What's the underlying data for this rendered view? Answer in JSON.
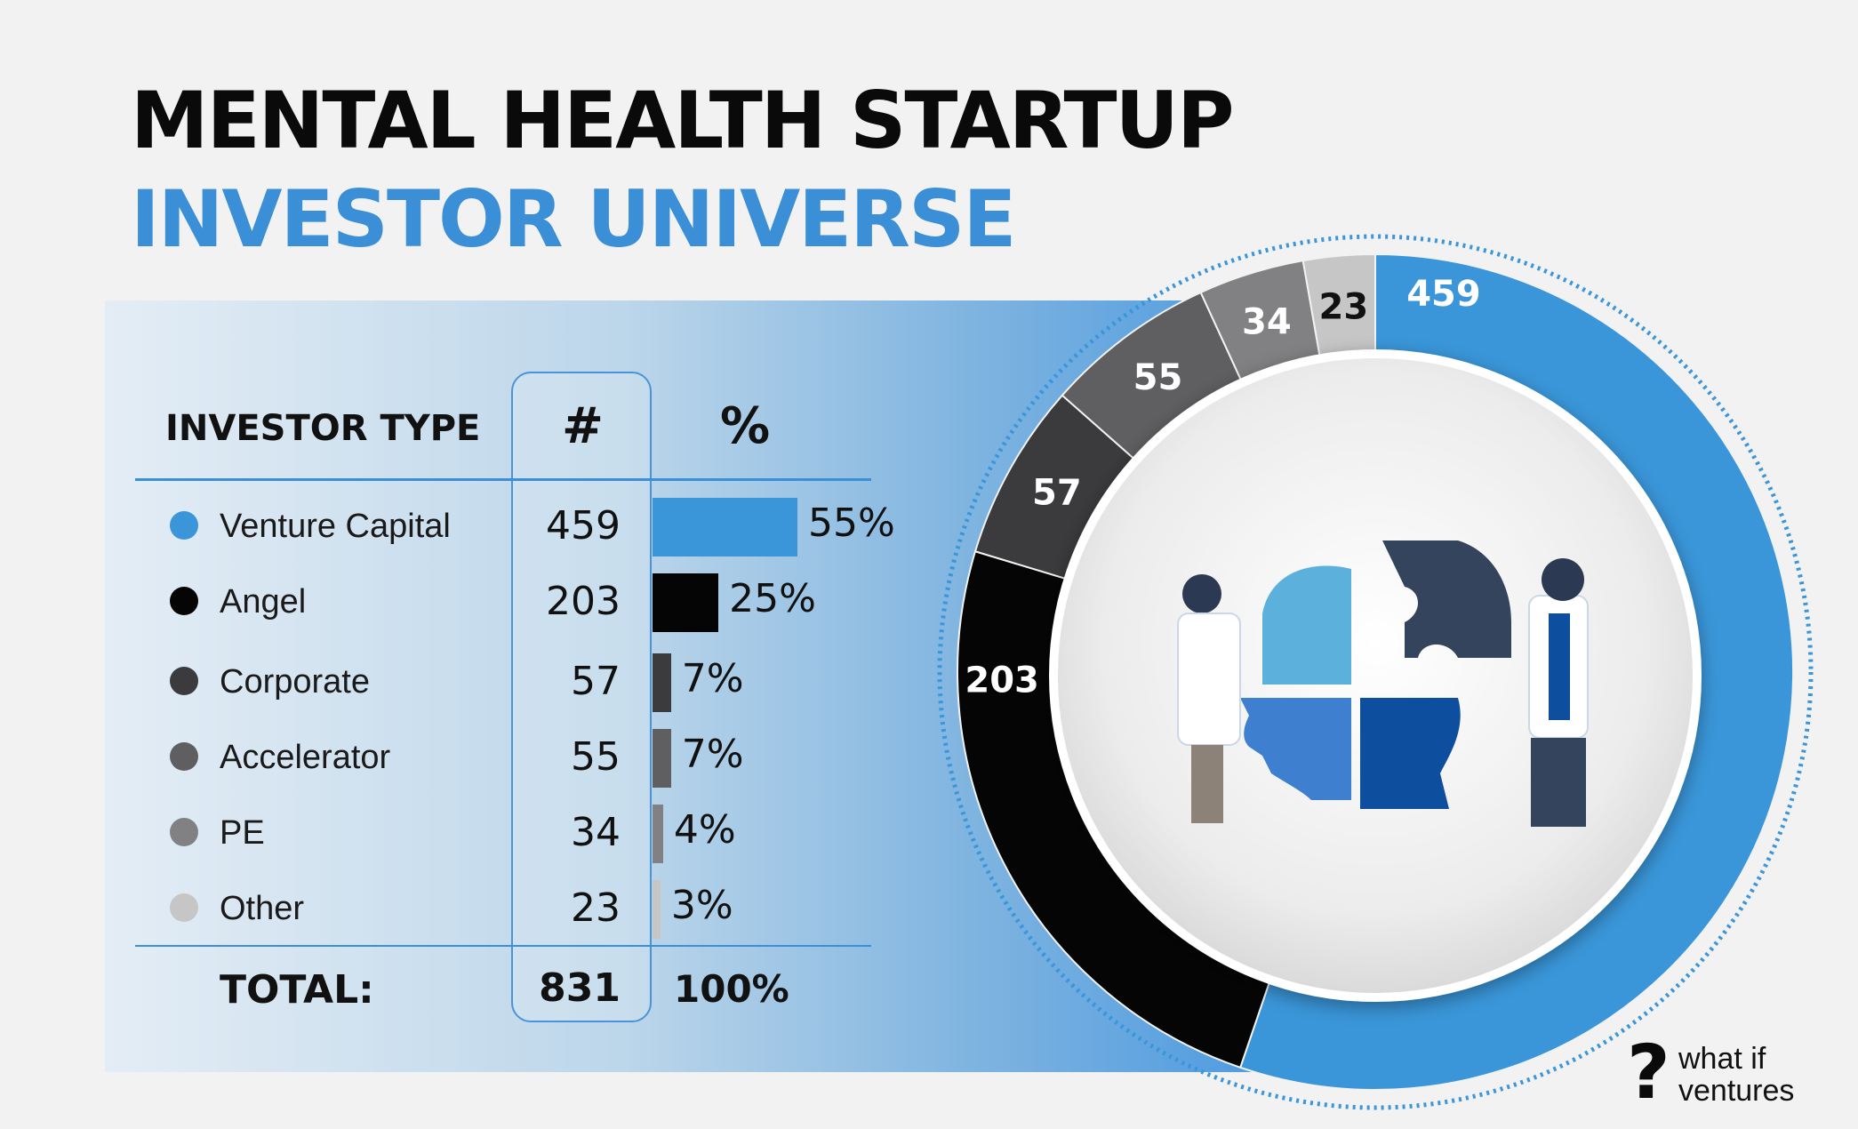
{
  "title": {
    "line1": "MENTAL HEALTH STARTUP",
    "line2": "INVESTOR UNIVERSE"
  },
  "table": {
    "header_type": "INVESTOR TYPE",
    "header_num": "#",
    "header_pct": "%",
    "total_label": "TOTAL:",
    "total_value": "831",
    "total_pct": "100%"
  },
  "chart_data": {
    "type": "pie",
    "title": "MENTAL HEALTH STARTUP INVESTOR UNIVERSE",
    "categories": [
      "Venture Capital",
      "Angel",
      "Corporate",
      "Accelerator",
      "PE",
      "Other"
    ],
    "values": [
      459,
      203,
      57,
      55,
      34,
      23
    ],
    "percent_labels": [
      "55%",
      "25%",
      "7%",
      "7%",
      "4%",
      "3%"
    ],
    "percent_values": [
      55,
      25,
      7,
      7,
      4,
      3
    ],
    "colors": [
      "#3a96d9",
      "#050505",
      "#3b3b3e",
      "#5f5f62",
      "#818184",
      "#c6c6c6"
    ],
    "total": 831,
    "donut_labels": [
      "459",
      "203",
      "57",
      "55",
      "34",
      "23"
    ],
    "center_icon": "puzzle-head-icon"
  },
  "brand": {
    "line1": "what if",
    "line2": "ventures",
    "icon": "question-mark-icon"
  }
}
